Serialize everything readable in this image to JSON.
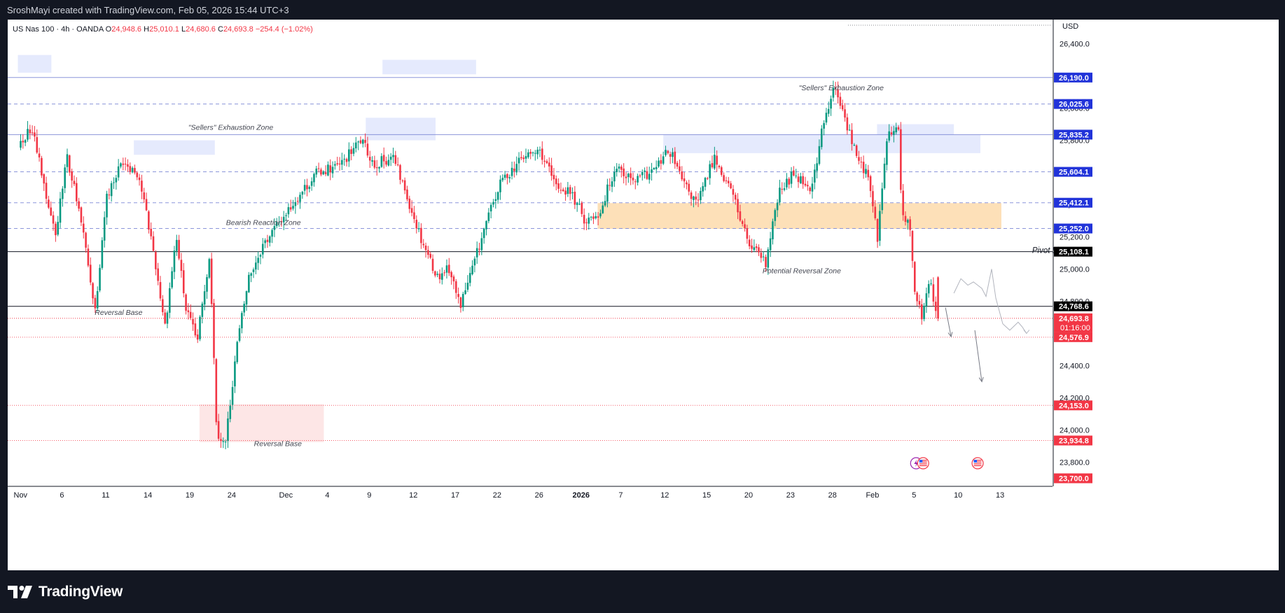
{
  "header": {
    "credit": "SroshMayi created with TradingView.com, Feb 05, 2026 15:44 UTC+3"
  },
  "legend": {
    "symbol": "US Nas 100 · 4h · OANDA",
    "open_label": "O",
    "open": "24,948.6",
    "high_label": "H",
    "high": "25,010.1",
    "low_label": "L",
    "low": "24,680.6",
    "close_label": "C",
    "close": "24,693.8",
    "change": "−254.4 (−1.02%)"
  },
  "footer": {
    "brand": "TradingView"
  },
  "colors": {
    "up": "#089981",
    "down": "#f23645",
    "zone_blue": "#e3e8fd",
    "zone_orange": "#fde3bd",
    "zone_pink": "#fde2e2"
  },
  "chart_data": {
    "type": "candlestick",
    "symbol": "US Nas 100",
    "timeframe": "4h",
    "currency": "USD",
    "ylim": [
      23650,
      26550
    ],
    "y_ticks": [
      "26,400.0",
      "26,200.0",
      "26,000.0",
      "25,800.0",
      "25,600.0",
      "25,400.0",
      "25,200.0",
      "25,000.0",
      "24,800.0",
      "24,600.0",
      "24,400.0",
      "24,200.0",
      "24,000.0",
      "23,800.0"
    ],
    "x_ticks": [
      {
        "label": "Nov",
        "day": 0
      },
      {
        "label": "6",
        "day": 3
      },
      {
        "label": "11",
        "day": 6
      },
      {
        "label": "14",
        "day": 9
      },
      {
        "label": "19",
        "day": 12
      },
      {
        "label": "24",
        "day": 15
      },
      {
        "label": "Dec",
        "day": 19
      },
      {
        "label": "4",
        "day": 22
      },
      {
        "label": "9",
        "day": 25
      },
      {
        "label": "12",
        "day": 28
      },
      {
        "label": "17",
        "day": 31
      },
      {
        "label": "22",
        "day": 34
      },
      {
        "label": "26",
        "day": 37
      },
      {
        "label": "2026",
        "day": 40
      },
      {
        "label": "7",
        "day": 43
      },
      {
        "label": "12",
        "day": 46
      },
      {
        "label": "15",
        "day": 49
      },
      {
        "label": "20",
        "day": 52
      },
      {
        "label": "23",
        "day": 55
      },
      {
        "label": "28",
        "day": 58
      },
      {
        "label": "Feb",
        "day": 61
      },
      {
        "label": "5",
        "day": 64
      },
      {
        "label": "10",
        "day": 67
      },
      {
        "label": "13",
        "day": 70
      }
    ],
    "price_path": [
      [
        0,
        25760
      ],
      [
        0.6,
        25850
      ],
      [
        1.2,
        25800
      ],
      [
        2,
        25450
      ],
      [
        2.7,
        25230
      ],
      [
        3.5,
        25700
      ],
      [
        4.5,
        25300
      ],
      [
        5.5,
        24750
      ],
      [
        6.3,
        25450
      ],
      [
        7.5,
        25680
      ],
      [
        8.6,
        25590
      ],
      [
        9.6,
        25150
      ],
      [
        10.5,
        24650
      ],
      [
        11.3,
        25200
      ],
      [
        12,
        24750
      ],
      [
        12.8,
        24550
      ],
      [
        13.7,
        25100
      ],
      [
        14.2,
        24000
      ],
      [
        14.8,
        23900
      ],
      [
        15.6,
        24500
      ],
      [
        16.5,
        24950
      ],
      [
        17.5,
        25150
      ],
      [
        18.5,
        25270
      ],
      [
        20,
        25450
      ],
      [
        21.5,
        25610
      ],
      [
        23,
        25640
      ],
      [
        24.5,
        25800
      ],
      [
        25.5,
        25650
      ],
      [
        26.8,
        25700
      ],
      [
        27.8,
        25460
      ],
      [
        28.8,
        25200
      ],
      [
        30,
        24950
      ],
      [
        30.8,
        25020
      ],
      [
        31.6,
        24770
      ],
      [
        32.5,
        25000
      ],
      [
        33.5,
        25290
      ],
      [
        34.6,
        25550
      ],
      [
        36.2,
        25700
      ],
      [
        37.4,
        25730
      ],
      [
        38.4,
        25520
      ],
      [
        39.5,
        25480
      ],
      [
        40.6,
        25300
      ],
      [
        41.6,
        25350
      ],
      [
        42.8,
        25650
      ],
      [
        44,
        25540
      ],
      [
        45.6,
        25620
      ],
      [
        46.6,
        25740
      ],
      [
        47.6,
        25530
      ],
      [
        48.6,
        25400
      ],
      [
        49.8,
        25700
      ],
      [
        51.2,
        25450
      ],
      [
        52.3,
        25150
      ],
      [
        53.5,
        25030
      ],
      [
        54.4,
        25460
      ],
      [
        55.5,
        25600
      ],
      [
        56.8,
        25500
      ],
      [
        57.5,
        25850
      ],
      [
        58.4,
        26130
      ],
      [
        59.3,
        25900
      ],
      [
        60,
        25700
      ],
      [
        60.8,
        25580
      ],
      [
        61.5,
        25200
      ],
      [
        62.2,
        25830
      ],
      [
        63,
        25860
      ],
      [
        63.2,
        25400
      ],
      [
        63.8,
        25240
      ],
      [
        64.2,
        24860
      ],
      [
        64.7,
        24700
      ],
      [
        65.3,
        24950
      ],
      [
        65.7,
        24694
      ]
    ],
    "horizontal_levels": [
      {
        "price": 26190.0,
        "label": "26,190.0",
        "style": "solid",
        "color": "#7e8ad6",
        "tag": "#2133d9"
      },
      {
        "price": 26025.6,
        "label": "26,025.6",
        "style": "dashed",
        "color": "#7e8ad6",
        "tag": "#2133d9"
      },
      {
        "price": 25835.2,
        "label": "25,835.2",
        "style": "solid",
        "color": "#7e8ad6",
        "tag": "#2133d9"
      },
      {
        "price": 25604.1,
        "label": "25,604.1",
        "style": "dashed",
        "color": "#7e8ad6",
        "tag": "#2133d9"
      },
      {
        "price": 25412.1,
        "label": "25,412.1",
        "style": "dashed",
        "color": "#7e8ad6",
        "tag": "#2133d9"
      },
      {
        "price": 25252.0,
        "label": "25,252.0",
        "style": "dashed",
        "color": "#7e8ad6",
        "tag": "#2133d9"
      },
      {
        "price": 25108.1,
        "label": "25,108.1",
        "style": "solid",
        "color": "#131722",
        "tag": "#000000"
      },
      {
        "price": 24768.6,
        "label": "24,768.6",
        "style": "solid",
        "color": "#131722",
        "tag": "#000000"
      },
      {
        "price": 24576.9,
        "label": "24,576.9",
        "style": "dotted",
        "color": "#f23645",
        "tag": "#f23645"
      },
      {
        "price": 24153.0,
        "label": "24,153.0",
        "style": "dotted",
        "color": "#f23645",
        "tag": "#f23645"
      },
      {
        "price": 23934.8,
        "label": "23,934.8",
        "style": "dotted",
        "color": "#f23645",
        "tag": "#f23645"
      },
      {
        "price": 23700.0,
        "label": "23,700.0",
        "style": "none",
        "color": "#f23645",
        "tag": "#f23645"
      }
    ],
    "current_price": {
      "label": "24,693.8",
      "countdown": "01:16:00",
      "color": "#f23645"
    },
    "zones": [
      {
        "type": "blue",
        "x0": -0.2,
        "x1": 2.2,
        "y0": 26330,
        "y1": 26220
      },
      {
        "type": "blue",
        "x0": 8.1,
        "x1": 13.9,
        "y0": 25800,
        "y1": 25710
      },
      {
        "type": "blue",
        "x0": 25.9,
        "x1": 32.6,
        "y0": 26300,
        "y1": 26210
      },
      {
        "type": "blue",
        "x0": 24.7,
        "x1": 29.7,
        "y0": 25940,
        "y1": 25800
      },
      {
        "type": "blue",
        "x0": 46.0,
        "x1": 68.7,
        "y0": 25835,
        "y1": 25720
      },
      {
        "type": "blue",
        "x0": 61.3,
        "x1": 66.8,
        "y0": 25900,
        "y1": 25835
      },
      {
        "type": "orange",
        "x0": 41.3,
        "x1": 70.2,
        "y0": 25410,
        "y1": 25250
      },
      {
        "type": "pink",
        "x0": 12.8,
        "x1": 21.7,
        "y0": 24160,
        "y1": 23925
      }
    ],
    "annotations": [
      {
        "text": "\"Sellers\" Exhaustion Zone",
        "day": 12,
        "price": 25865
      },
      {
        "text": "Bearish Reaction Zone",
        "day": 14.7,
        "price": 25275
      },
      {
        "text": "Reversal Base",
        "day": 5.3,
        "price": 24715
      },
      {
        "text": "Reversal Base",
        "day": 16.7,
        "price": 23900
      },
      {
        "text": "\"Sellers\" Exhaustion Zone",
        "day": 55.7,
        "price": 26110
      },
      {
        "text": "Potential Reversal Zone",
        "day": 53.1,
        "price": 24975
      },
      {
        "text": "Pivot Line",
        "day": 72.4,
        "price": 25100
      }
    ],
    "projection_arrows": [
      {
        "from": [
          66.2,
          24760
        ],
        "to": [
          66.6,
          24580
        ]
      },
      {
        "from": [
          68.3,
          24620
        ],
        "to": [
          68.8,
          24300
        ]
      }
    ],
    "projection_scribble": [
      [
        66.8,
        24850
      ],
      [
        67.3,
        24940
      ],
      [
        67.8,
        24900
      ],
      [
        68.2,
        24920
      ],
      [
        68.8,
        24880
      ],
      [
        69.1,
        24830
      ],
      [
        69.5,
        25000
      ],
      [
        69.8,
        24820
      ],
      [
        70.3,
        24660
      ],
      [
        70.8,
        24620
      ],
      [
        71.4,
        24670
      ],
      [
        71.7,
        24640
      ],
      [
        72,
        24600
      ]
    ],
    "event_icons": [
      {
        "type": "earnings-icon",
        "day": 64.1
      },
      {
        "type": "us-flag-icon",
        "day": 64.6
      },
      {
        "type": "us-flag-icon",
        "day": 68.5
      }
    ]
  }
}
